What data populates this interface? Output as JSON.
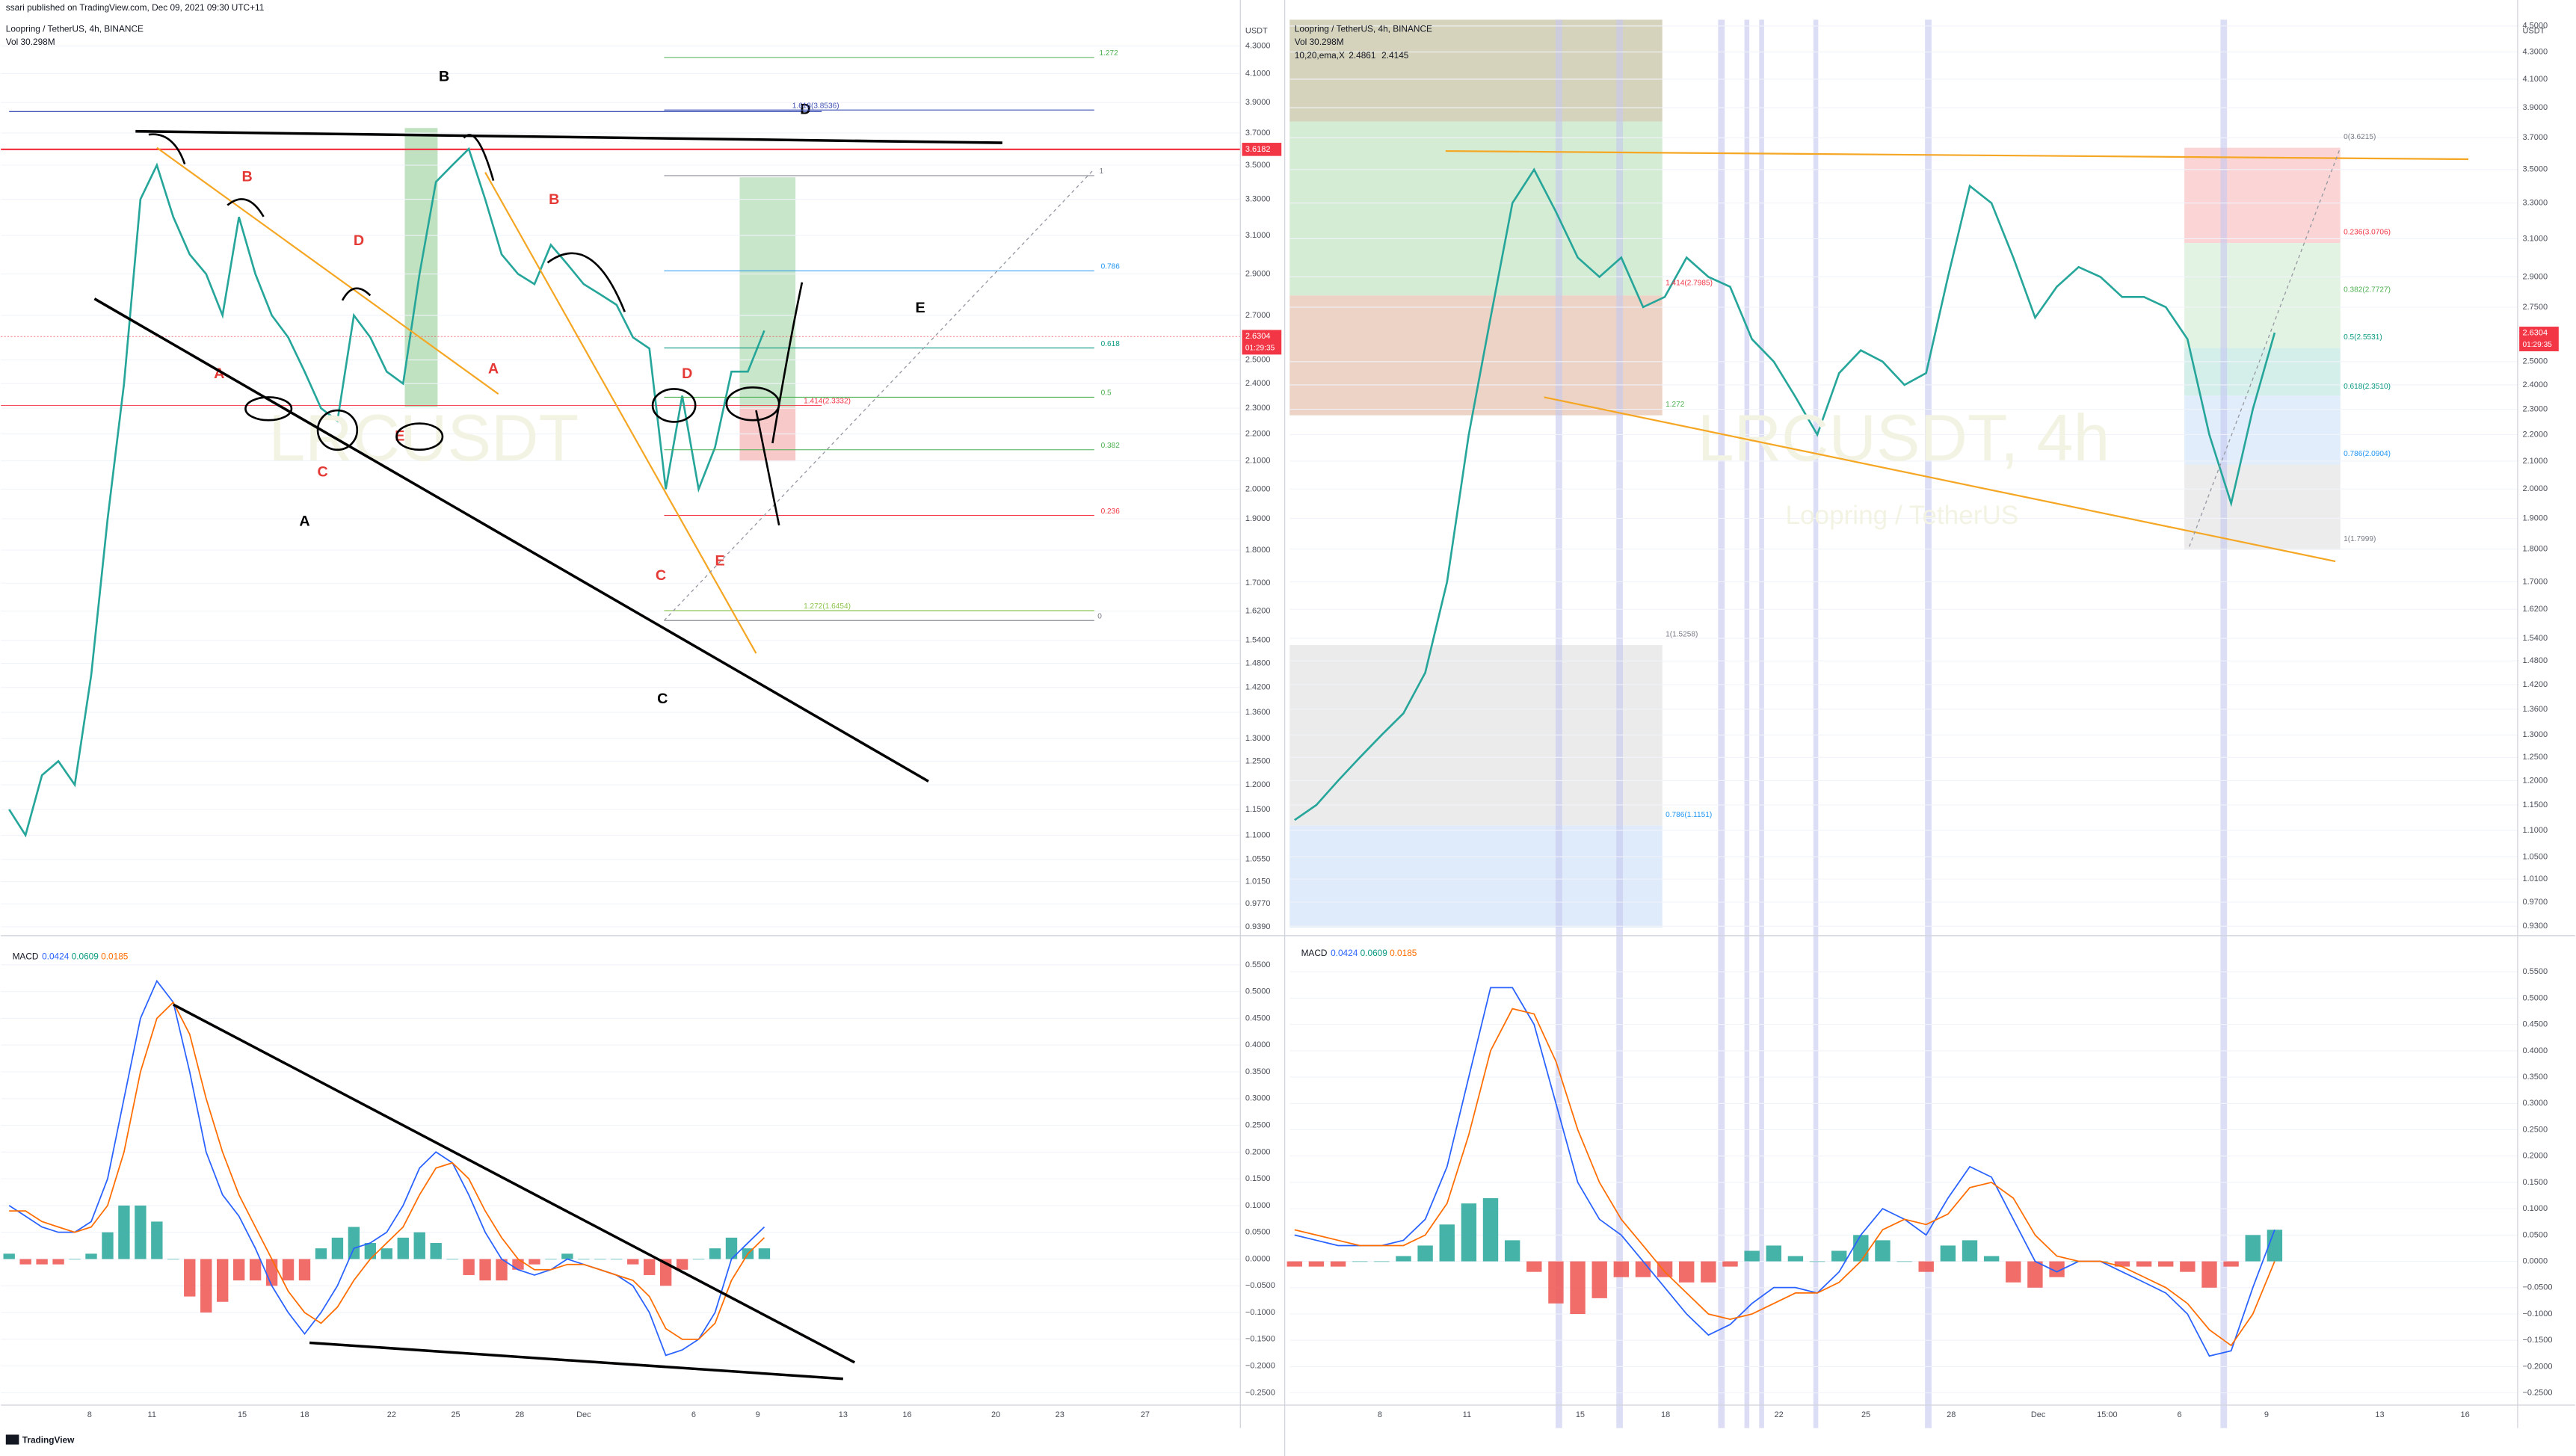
{
  "header": {
    "text": "ssari published on TradingView.com, Dec 09, 2021 09:30 UTC+11"
  },
  "footer": {
    "logo": "TradingView"
  },
  "chart_data": [
    {
      "type": "line",
      "title": "Loopring / TetherUS, 4h, BINANCE",
      "subtitle": "Vol 30.298M",
      "watermark": "LRCUSDT",
      "y_axis_label": "USDT",
      "log_scale": true,
      "grid": true,
      "color": "#26a69a",
      "ylim": [
        0.93,
        4.5
      ],
      "yticks": [
        {
          "value": 4.3,
          "label": "4.3000"
        },
        {
          "value": 4.1,
          "label": "4.1000"
        },
        {
          "value": 3.9,
          "label": "3.9000"
        },
        {
          "value": 3.7,
          "label": "3.7000"
        },
        {
          "value": 3.5,
          "label": "3.5000"
        },
        {
          "value": 3.3,
          "label": "3.3000"
        },
        {
          "value": 3.1,
          "label": "3.1000"
        },
        {
          "value": 2.9,
          "label": "2.9000"
        },
        {
          "value": 2.7,
          "label": "2.7000"
        },
        {
          "value": 2.5,
          "label": "2.5000"
        },
        {
          "value": 2.4,
          "label": "2.4000"
        },
        {
          "value": 2.3,
          "label": "2.3000"
        },
        {
          "value": 2.2,
          "label": "2.2000"
        },
        {
          "value": 2.1,
          "label": "2.1000"
        },
        {
          "value": 2.0,
          "label": "2.0000"
        },
        {
          "value": 1.9,
          "label": "1.9000"
        },
        {
          "value": 1.8,
          "label": "1.8000"
        },
        {
          "value": 1.7,
          "label": "1.7000"
        },
        {
          "value": 1.62,
          "label": "1.6200"
        },
        {
          "value": 1.54,
          "label": "1.5400"
        },
        {
          "value": 1.48,
          "label": "1.4800"
        },
        {
          "value": 1.42,
          "label": "1.4200"
        },
        {
          "value": 1.36,
          "label": "1.3600"
        },
        {
          "value": 1.3,
          "label": "1.3000"
        },
        {
          "value": 1.25,
          "label": "1.2500"
        },
        {
          "value": 1.2,
          "label": "1.2000"
        },
        {
          "value": 1.15,
          "label": "1.1500"
        },
        {
          "value": 1.1,
          "label": "1.1000"
        },
        {
          "value": 1.055,
          "label": "1.0550"
        },
        {
          "value": 1.015,
          "label": "1.0150"
        },
        {
          "value": 0.977,
          "label": "0.9770"
        },
        {
          "value": 0.939,
          "label": "0.9390"
        }
      ],
      "values": [
        1.15,
        1.1,
        1.22,
        1.25,
        1.2,
        1.45,
        1.9,
        2.4,
        3.3,
        3.5,
        3.2,
        3.0,
        2.9,
        2.7,
        3.2,
        2.9,
        2.7,
        2.6,
        2.45,
        2.3,
        2.25,
        2.7,
        2.6,
        2.45,
        2.4,
        2.9,
        3.4,
        3.5,
        3.6,
        3.3,
        3.0,
        2.9,
        2.85,
        3.05,
        2.95,
        2.85,
        2.8,
        2.75,
        2.6,
        2.55,
        2.0,
        2.35,
        2.0,
        2.15,
        2.45,
        2.45,
        2.63
      ],
      "annotations": [
        "B",
        "D",
        "B",
        "D",
        "A",
        "E",
        "C",
        "A",
        "B",
        "A",
        "D",
        "C",
        "E",
        "E",
        "C"
      ],
      "fib_labels": [
        "1.272",
        "1.618(3.8536)",
        "1",
        "0.786",
        "0.618",
        "0.5",
        "1.414(2.3332)",
        "0.382",
        "0.236",
        "1.272(1.6454)",
        "0"
      ],
      "price_tags": [
        3.6182,
        2.6304
      ],
      "countdown": "01:29:35"
    },
    {
      "type": "macd",
      "title": "MACD",
      "legend_values": [
        0.0424,
        0.0609,
        0.0185
      ],
      "grid": true,
      "ylim": [
        -0.27,
        0.58
      ],
      "yticks": [
        {
          "value": 0.55,
          "label": "0.5500"
        },
        {
          "value": 0.5,
          "label": "0.5000"
        },
        {
          "value": 0.45,
          "label": "0.4500"
        },
        {
          "value": 0.4,
          "label": "0.4000"
        },
        {
          "value": 0.35,
          "label": "0.3500"
        },
        {
          "value": 0.3,
          "label": "0.3000"
        },
        {
          "value": 0.25,
          "label": "0.2500"
        },
        {
          "value": 0.2,
          "label": "0.2000"
        },
        {
          "value": 0.15,
          "label": "0.1500"
        },
        {
          "value": 0.1,
          "label": "0.1000"
        },
        {
          "value": 0.05,
          "label": "0.0500"
        },
        {
          "value": 0,
          "label": "0.0000"
        },
        {
          "value": -0.05,
          "label": "−0.0500"
        },
        {
          "value": -0.1,
          "label": "−0.1000"
        },
        {
          "value": -0.15,
          "label": "−0.1500"
        },
        {
          "value": -0.2,
          "label": "−0.2000"
        },
        {
          "value": -0.25,
          "label": "−0.2500"
        }
      ],
      "series": [
        {
          "color": "#2962ff",
          "values": [
            0.1,
            0.08,
            0.06,
            0.05,
            0.05,
            0.07,
            0.15,
            0.3,
            0.45,
            0.52,
            0.48,
            0.35,
            0.2,
            0.12,
            0.08,
            0.02,
            -0.05,
            -0.1,
            -0.14,
            -0.1,
            -0.05,
            0.02,
            0.03,
            0.05,
            0.1,
            0.17,
            0.2,
            0.18,
            0.12,
            0.05,
            0.0,
            -0.02,
            -0.03,
            -0.02,
            0.0,
            -0.01,
            -0.02,
            -0.03,
            -0.05,
            -0.1,
            -0.18,
            -0.17,
            -0.15,
            -0.1,
            0.0,
            0.03,
            0.06
          ]
        },
        {
          "color": "#ff6d00",
          "values": [
            0.09,
            0.09,
            0.07,
            0.06,
            0.05,
            0.06,
            0.1,
            0.2,
            0.35,
            0.45,
            0.48,
            0.42,
            0.3,
            0.2,
            0.12,
            0.06,
            0.0,
            -0.06,
            -0.1,
            -0.12,
            -0.09,
            -0.04,
            0.0,
            0.03,
            0.06,
            0.12,
            0.17,
            0.18,
            0.15,
            0.09,
            0.04,
            0.0,
            -0.02,
            -0.02,
            -0.01,
            -0.01,
            -0.02,
            -0.03,
            -0.04,
            -0.07,
            -0.13,
            -0.15,
            -0.15,
            -0.12,
            -0.04,
            0.01,
            0.04
          ]
        }
      ],
      "histogram": [
        0.01,
        -0.01,
        -0.01,
        -0.01,
        0,
        0.01,
        0.05,
        0.1,
        0.1,
        0.07,
        0,
        -0.07,
        -0.1,
        -0.08,
        -0.04,
        -0.04,
        -0.05,
        -0.04,
        -0.04,
        0.02,
        0.04,
        0.06,
        0.03,
        0.02,
        0.04,
        0.05,
        0.03,
        0,
        -0.03,
        -0.04,
        -0.04,
        -0.02,
        -0.01,
        0,
        0.01,
        0,
        0,
        0,
        -0.01,
        -0.03,
        -0.05,
        -0.02,
        0,
        0.02,
        0.04,
        0.02,
        0.02
      ],
      "x_labels": [
        "8",
        "11",
        "15",
        "18",
        "22",
        "25",
        "28",
        "Dec",
        "6",
        "9",
        "13",
        "16",
        "20",
        "23",
        "27"
      ]
    },
    {
      "type": "line",
      "title": "Loopring / TetherUS, 4h, BINANCE",
      "subtitle": "Vol 30.298M",
      "indicator": [
        "10,20,ema,X",
        "2.4861",
        "2.4145"
      ],
      "watermark": "LRCUSDT, 4h",
      "watermark_sub": "Loopring / TetherUS",
      "y_axis_label": "USDT",
      "log_scale": true,
      "grid": true,
      "color": "#26a69a",
      "ylim": [
        0.92,
        4.55
      ],
      "yticks": [
        {
          "value": 4.5,
          "label": "4.5000"
        },
        {
          "value": 4.3,
          "label": "4.3000"
        },
        {
          "value": 4.1,
          "label": "4.1000"
        },
        {
          "value": 3.9,
          "label": "3.9000"
        },
        {
          "value": 3.7,
          "label": "3.7000"
        },
        {
          "value": 3.5,
          "label": "3.5000"
        },
        {
          "value": 3.3,
          "label": "3.3000"
        },
        {
          "value": 3.1,
          "label": "3.1000"
        },
        {
          "value": 2.9,
          "label": "2.9000"
        },
        {
          "value": 2.75,
          "label": "2.7500"
        },
        {
          "value": 2.5,
          "label": "2.5000"
        },
        {
          "value": 2.4,
          "label": "2.4000"
        },
        {
          "value": 2.3,
          "label": "2.3000"
        },
        {
          "value": 2.2,
          "label": "2.2000"
        },
        {
          "value": 2.1,
          "label": "2.1000"
        },
        {
          "value": 2.0,
          "label": "2.0000"
        },
        {
          "value": 1.9,
          "label": "1.9000"
        },
        {
          "value": 1.8,
          "label": "1.8000"
        },
        {
          "value": 1.7,
          "label": "1.7000"
        },
        {
          "value": 1.62,
          "label": "1.6200"
        },
        {
          "value": 1.54,
          "label": "1.5400"
        },
        {
          "value": 1.48,
          "label": "1.4800"
        },
        {
          "value": 1.42,
          "label": "1.4200"
        },
        {
          "value": 1.36,
          "label": "1.3600"
        },
        {
          "value": 1.3,
          "label": "1.3000"
        },
        {
          "value": 1.25,
          "label": "1.2500"
        },
        {
          "value": 1.2,
          "label": "1.2000"
        },
        {
          "value": 1.15,
          "label": "1.1500"
        },
        {
          "value": 1.1,
          "label": "1.1000"
        },
        {
          "value": 1.05,
          "label": "1.0500"
        },
        {
          "value": 1.01,
          "label": "1.0100"
        },
        {
          "value": 0.97,
          "label": "0.9700"
        },
        {
          "value": 0.93,
          "label": "0.9300"
        }
      ],
      "values": [
        1.12,
        1.15,
        1.2,
        1.25,
        1.3,
        1.35,
        1.45,
        1.7,
        2.2,
        2.7,
        3.3,
        3.5,
        3.25,
        3.0,
        2.9,
        3.0,
        2.75,
        2.8,
        3.0,
        2.9,
        2.85,
        2.6,
        2.5,
        2.35,
        2.2,
        2.45,
        2.55,
        2.5,
        2.4,
        2.45,
        2.9,
        3.4,
        3.3,
        3.0,
        2.7,
        2.85,
        2.95,
        2.9,
        2.8,
        2.8,
        2.75,
        2.6,
        2.2,
        1.95,
        2.3,
        2.63
      ],
      "fib_labels": [
        "0(3.6215)",
        "0.236(3.0706)",
        "0.382(2.7727)",
        "0.5(2.5531)",
        "0.618(2.3510)",
        "0.786(2.0904)",
        "1(1.7999)",
        "1.414(2.7985)",
        "1.272",
        "1(1.5258)",
        "0.786(1.1151)"
      ],
      "price_tags": [
        2.6304
      ],
      "countdown": "01:29:35"
    },
    {
      "type": "macd",
      "title": "MACD",
      "legend_values": [
        0.0424,
        0.0609,
        0.0185
      ],
      "grid": true,
      "ylim": [
        -0.27,
        0.6
      ],
      "yticks": [
        {
          "value": 0.55,
          "label": "0.5500"
        },
        {
          "value": 0.5,
          "label": "0.5000"
        },
        {
          "value": 0.45,
          "label": "0.4500"
        },
        {
          "value": 0.4,
          "label": "0.4000"
        },
        {
          "value": 0.35,
          "label": "0.3500"
        },
        {
          "value": 0.3,
          "label": "0.3000"
        },
        {
          "value": 0.25,
          "label": "0.2500"
        },
        {
          "value": 0.2,
          "label": "0.2000"
        },
        {
          "value": 0.15,
          "label": "0.1500"
        },
        {
          "value": 0.1,
          "label": "0.1000"
        },
        {
          "value": 0.05,
          "label": "0.0500"
        },
        {
          "value": 0,
          "label": "0.0000"
        },
        {
          "value": -0.05,
          "label": "−0.0500"
        },
        {
          "value": -0.1,
          "label": "−0.1000"
        },
        {
          "value": -0.15,
          "label": "−0.1500"
        },
        {
          "value": -0.2,
          "label": "−0.2000"
        },
        {
          "value": -0.25,
          "label": "−0.2500"
        }
      ],
      "series": [
        {
          "color": "#2962ff",
          "values": [
            0.05,
            0.04,
            0.03,
            0.03,
            0.03,
            0.04,
            0.08,
            0.18,
            0.35,
            0.52,
            0.52,
            0.45,
            0.3,
            0.15,
            0.08,
            0.05,
            0.0,
            -0.05,
            -0.1,
            -0.14,
            -0.12,
            -0.08,
            -0.05,
            -0.05,
            -0.06,
            -0.02,
            0.05,
            0.1,
            0.08,
            0.05,
            0.12,
            0.18,
            0.16,
            0.08,
            0.0,
            -0.02,
            0.0,
            0.0,
            -0.02,
            -0.04,
            -0.06,
            -0.1,
            -0.18,
            -0.17,
            -0.05,
            0.06
          ]
        },
        {
          "color": "#ff6d00",
          "values": [
            0.06,
            0.05,
            0.04,
            0.03,
            0.03,
            0.03,
            0.05,
            0.11,
            0.24,
            0.4,
            0.48,
            0.47,
            0.38,
            0.25,
            0.15,
            0.08,
            0.03,
            -0.02,
            -0.06,
            -0.1,
            -0.11,
            -0.1,
            -0.08,
            -0.06,
            -0.06,
            -0.04,
            0.0,
            0.06,
            0.08,
            0.07,
            0.09,
            0.14,
            0.15,
            0.12,
            0.05,
            0.01,
            0.0,
            0.0,
            -0.01,
            -0.03,
            -0.05,
            -0.08,
            -0.13,
            -0.16,
            -0.1,
            0.0
          ]
        }
      ],
      "histogram": [
        -0.01,
        -0.01,
        -0.01,
        0,
        0,
        0.01,
        0.03,
        0.07,
        0.11,
        0.12,
        0.04,
        -0.02,
        -0.08,
        -0.1,
        -0.07,
        -0.03,
        -0.03,
        -0.03,
        -0.04,
        -0.04,
        -0.01,
        0.02,
        0.03,
        0.01,
        0,
        0.02,
        0.05,
        0.04,
        0,
        -0.02,
        0.03,
        0.04,
        0.01,
        -0.04,
        -0.05,
        -0.03,
        0,
        0,
        -0.01,
        -0.01,
        -0.01,
        -0.02,
        -0.05,
        -0.01,
        0.05,
        0.06
      ],
      "x_labels": [
        "8",
        "11",
        "15",
        "18",
        "22",
        "25",
        "28",
        "Dec",
        "15:00",
        "6",
        "9",
        "13",
        "16"
      ]
    }
  ]
}
